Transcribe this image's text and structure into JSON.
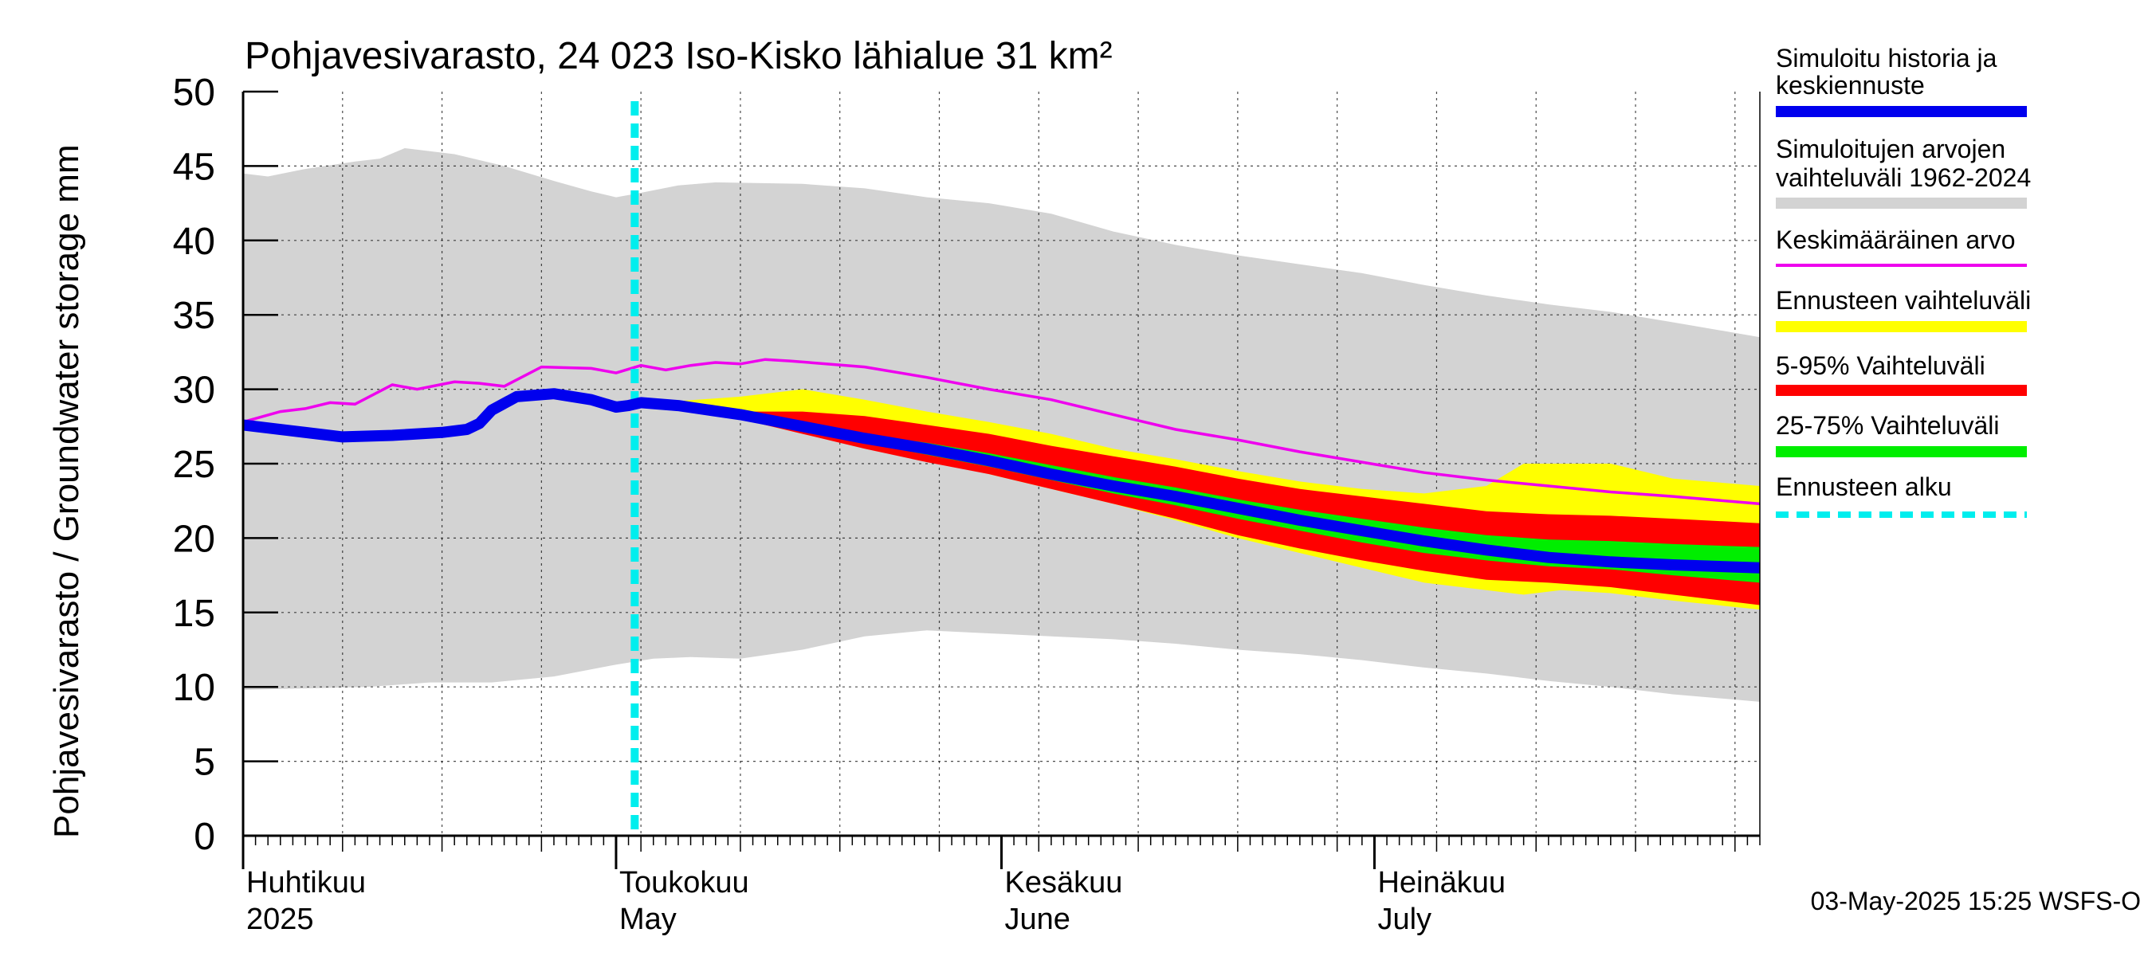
{
  "chart_data": {
    "type": "area",
    "title": "Pohjavesivarasto, 24 023 Iso-Kisko lähialue 31 km²",
    "ylabel": "Pohjavesivarasto / Groundwater storage   mm",
    "ylim": [
      0,
      50
    ],
    "yticks": [
      "0",
      "5",
      "10",
      "15",
      "20",
      "25",
      "30",
      "35",
      "40",
      "45",
      "50"
    ],
    "x_domain_days": [
      0,
      122
    ],
    "month_labels": [
      {
        "fi": "Huhtikuu",
        "en": "2025",
        "day": 0
      },
      {
        "fi": "Toukokuu",
        "en": "May",
        "day": 30
      },
      {
        "fi": "Kesäkuu",
        "en": "June",
        "day": 61
      },
      {
        "fi": "Heinäkuu",
        "en": "July",
        "day": 91
      }
    ],
    "forecast_start_day": 31.5,
    "timestamp": "03-May-2025 15:25 WSFS-O",
    "legend": [
      {
        "label": "Simuloitu historia ja keskiennuste",
        "color": "#0000ee"
      },
      {
        "label": "Simuloitujen arvojen vaihteluväli 1962-2024",
        "color": "#d3d3d3"
      },
      {
        "label": "Keskimääräinen arvo",
        "color": "#ee00ee"
      },
      {
        "label": "Ennusteen vaihteluväli",
        "color": "#ffff00"
      },
      {
        "label": "5-95% Vaihteluväli",
        "color": "#ff0000"
      },
      {
        "label": "25-75% Vaihteluväli",
        "color": "#00ee00"
      },
      {
        "label": "Ennusteen alku",
        "color": "#00eeee"
      }
    ],
    "series": {
      "range_hist_upper": [
        [
          0,
          44.5
        ],
        [
          2,
          44.3
        ],
        [
          5,
          44.8
        ],
        [
          9,
          45.3
        ],
        [
          11,
          45.5
        ],
        [
          13,
          46.2
        ],
        [
          17,
          45.8
        ],
        [
          21,
          45
        ],
        [
          25,
          44
        ],
        [
          28,
          43.3
        ],
        [
          30,
          42.9
        ],
        [
          32,
          43.2
        ],
        [
          35,
          43.7
        ],
        [
          38,
          43.9
        ],
        [
          45,
          43.8
        ],
        [
          50,
          43.5
        ],
        [
          55,
          42.9
        ],
        [
          60,
          42.5
        ],
        [
          65,
          41.8
        ],
        [
          70,
          40.6
        ],
        [
          75,
          39.7
        ],
        [
          80,
          39
        ],
        [
          85,
          38.4
        ],
        [
          90,
          37.8
        ],
        [
          95,
          37
        ],
        [
          100,
          36.3
        ],
        [
          105,
          35.7
        ],
        [
          110,
          35.2
        ],
        [
          115,
          34.5
        ],
        [
          122,
          33.5
        ]
      ],
      "range_hist_lower": [
        [
          0,
          9.8
        ],
        [
          5,
          9.9
        ],
        [
          10,
          10
        ],
        [
          15,
          10.3
        ],
        [
          20,
          10.3
        ],
        [
          25,
          10.7
        ],
        [
          30,
          11.5
        ],
        [
          33,
          11.9
        ],
        [
          36,
          12
        ],
        [
          40,
          11.9
        ],
        [
          45,
          12.5
        ],
        [
          50,
          13.4
        ],
        [
          55,
          13.8
        ],
        [
          60,
          13.6
        ],
        [
          65,
          13.4
        ],
        [
          70,
          13.2
        ],
        [
          75,
          12.9
        ],
        [
          80,
          12.5
        ],
        [
          85,
          12.2
        ],
        [
          90,
          11.8
        ],
        [
          95,
          11.3
        ],
        [
          100,
          10.9
        ],
        [
          105,
          10.4
        ],
        [
          110,
          10
        ],
        [
          115,
          9.5
        ],
        [
          122,
          9
        ]
      ],
      "mean": [
        [
          0,
          27.8
        ],
        [
          3,
          28.5
        ],
        [
          5,
          28.7
        ],
        [
          7,
          29.1
        ],
        [
          9,
          29
        ],
        [
          12,
          30.3
        ],
        [
          14,
          30
        ],
        [
          17,
          30.5
        ],
        [
          19,
          30.4
        ],
        [
          21,
          30.2
        ],
        [
          24,
          31.5
        ],
        [
          28,
          31.4
        ],
        [
          30,
          31.1
        ],
        [
          32,
          31.6
        ],
        [
          34,
          31.3
        ],
        [
          36,
          31.6
        ],
        [
          38,
          31.8
        ],
        [
          40,
          31.7
        ],
        [
          42,
          32
        ],
        [
          44,
          31.9
        ],
        [
          50,
          31.5
        ],
        [
          55,
          30.8
        ],
        [
          60,
          30
        ],
        [
          65,
          29.3
        ],
        [
          70,
          28.3
        ],
        [
          75,
          27.3
        ],
        [
          80,
          26.6
        ],
        [
          85,
          25.8
        ],
        [
          90,
          25.1
        ],
        [
          95,
          24.4
        ],
        [
          100,
          23.9
        ],
        [
          105,
          23.5
        ],
        [
          110,
          23.1
        ],
        [
          115,
          22.8
        ],
        [
          122,
          22.3
        ]
      ],
      "hist_median": [
        [
          0,
          27.6
        ],
        [
          4,
          27.2
        ],
        [
          8,
          26.8
        ],
        [
          12,
          26.9
        ],
        [
          16,
          27.1
        ],
        [
          18,
          27.3
        ],
        [
          19,
          27.7
        ],
        [
          20,
          28.6
        ],
        [
          22,
          29.5
        ],
        [
          25,
          29.7
        ],
        [
          28,
          29.3
        ],
        [
          30,
          28.8
        ],
        [
          31,
          28.9
        ],
        [
          32,
          29.1
        ],
        [
          35,
          28.9
        ],
        [
          40,
          28.3
        ],
        [
          45,
          27.5
        ],
        [
          50,
          26.7
        ],
        [
          55,
          26
        ],
        [
          60,
          25.2
        ],
        [
          65,
          24.3
        ],
        [
          70,
          23.5
        ],
        [
          75,
          22.8
        ],
        [
          80,
          22
        ],
        [
          85,
          21.2
        ],
        [
          90,
          20.5
        ],
        [
          95,
          19.8
        ],
        [
          100,
          19.2
        ],
        [
          105,
          18.7
        ],
        [
          110,
          18.4
        ],
        [
          115,
          18.2
        ],
        [
          122,
          18.0
        ]
      ],
      "fc_yellow_upper": [
        [
          31.5,
          29
        ],
        [
          40,
          29.5
        ],
        [
          45,
          30
        ],
        [
          50,
          29.3
        ],
        [
          55,
          28.5
        ],
        [
          60,
          27.8
        ],
        [
          65,
          27
        ],
        [
          70,
          26
        ],
        [
          75,
          25.3
        ],
        [
          80,
          24.5
        ],
        [
          85,
          23.8
        ],
        [
          90,
          23.3
        ],
        [
          95,
          23
        ],
        [
          100,
          23.5
        ],
        [
          103,
          25
        ],
        [
          110,
          25
        ],
        [
          115,
          24
        ],
        [
          122,
          23.5
        ]
      ],
      "fc_yellow_lower": [
        [
          31.5,
          29
        ],
        [
          40,
          28.2
        ],
        [
          45,
          27.2
        ],
        [
          50,
          26.2
        ],
        [
          55,
          25.3
        ],
        [
          60,
          24.3
        ],
        [
          65,
          23.3
        ],
        [
          70,
          22.3
        ],
        [
          75,
          21.2
        ],
        [
          80,
          20
        ],
        [
          85,
          19
        ],
        [
          90,
          18
        ],
        [
          95,
          17
        ],
        [
          100,
          16.5
        ],
        [
          103,
          16.2
        ],
        [
          106,
          16.5
        ],
        [
          110,
          16.3
        ],
        [
          115,
          15.8
        ],
        [
          122,
          15.2
        ]
      ],
      "fc_red_upper": [
        [
          31.5,
          29
        ],
        [
          40,
          28.5
        ],
        [
          45,
          28.5
        ],
        [
          50,
          28.2
        ],
        [
          55,
          27.6
        ],
        [
          60,
          27
        ],
        [
          65,
          26.2
        ],
        [
          70,
          25.5
        ],
        [
          75,
          24.8
        ],
        [
          80,
          24
        ],
        [
          85,
          23.3
        ],
        [
          90,
          22.8
        ],
        [
          95,
          22.3
        ],
        [
          100,
          21.8
        ],
        [
          105,
          21.6
        ],
        [
          110,
          21.5
        ],
        [
          115,
          21.3
        ],
        [
          122,
          21
        ]
      ],
      "fc_red_lower": [
        [
          31.5,
          29
        ],
        [
          40,
          28
        ],
        [
          45,
          27
        ],
        [
          50,
          26
        ],
        [
          55,
          25.1
        ],
        [
          60,
          24.3
        ],
        [
          65,
          23.3
        ],
        [
          70,
          22.3
        ],
        [
          75,
          21.3
        ],
        [
          80,
          20.2
        ],
        [
          85,
          19.3
        ],
        [
          90,
          18.5
        ],
        [
          95,
          17.8
        ],
        [
          100,
          17.2
        ],
        [
          105,
          17
        ],
        [
          110,
          16.7
        ],
        [
          115,
          16.2
        ],
        [
          122,
          15.5
        ]
      ],
      "fc_green_upper": [
        [
          31.5,
          29
        ],
        [
          40,
          28.3
        ],
        [
          45,
          27.7
        ],
        [
          50,
          27
        ],
        [
          55,
          26.4
        ],
        [
          60,
          25.7
        ],
        [
          65,
          24.9
        ],
        [
          70,
          24.1
        ],
        [
          75,
          23.4
        ],
        [
          80,
          22.6
        ],
        [
          85,
          21.9
        ],
        [
          90,
          21.3
        ],
        [
          95,
          20.7
        ],
        [
          100,
          20.2
        ],
        [
          105,
          19.9
        ],
        [
          110,
          19.8
        ],
        [
          115,
          19.6
        ],
        [
          122,
          19.4
        ]
      ],
      "fc_green_lower": [
        [
          31.5,
          29
        ],
        [
          40,
          28.1
        ],
        [
          45,
          27.2
        ],
        [
          50,
          26.4
        ],
        [
          55,
          25.6
        ],
        [
          60,
          24.8
        ],
        [
          65,
          23.9
        ],
        [
          70,
          23
        ],
        [
          75,
          22.2
        ],
        [
          80,
          21.3
        ],
        [
          85,
          20.5
        ],
        [
          90,
          19.7
        ],
        [
          95,
          19
        ],
        [
          100,
          18.5
        ],
        [
          105,
          18.1
        ],
        [
          110,
          17.9
        ],
        [
          115,
          17.5
        ],
        [
          122,
          17
        ]
      ]
    }
  }
}
